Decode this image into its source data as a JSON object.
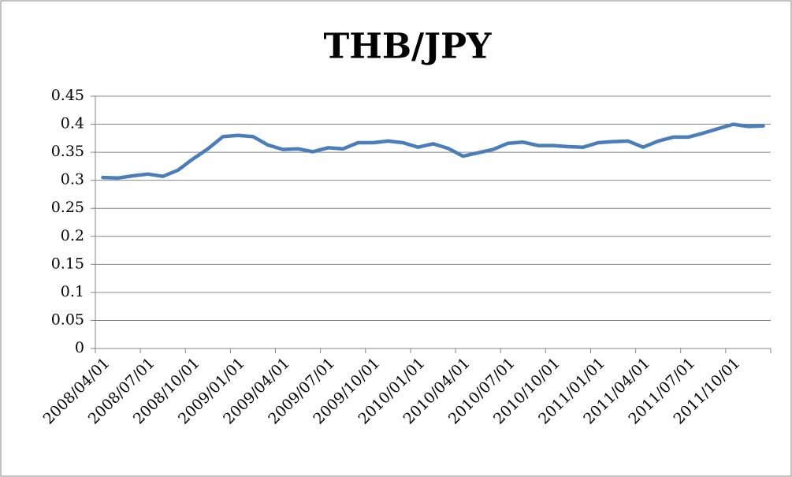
{
  "chart_data": {
    "type": "line",
    "title": "THB/JPY",
    "categories": [
      "2008/04/01",
      null,
      null,
      "2008/07/01",
      null,
      null,
      "2008/10/01",
      null,
      null,
      "2009/01/01",
      null,
      null,
      "2009/04/01",
      null,
      null,
      "2009/07/01",
      null,
      null,
      "2009/10/01",
      null,
      null,
      "2010/01/01",
      null,
      null,
      "2010/04/01",
      null,
      null,
      "2010/07/01",
      null,
      null,
      "2010/10/01",
      null,
      null,
      "2011/01/01",
      null,
      null,
      "2011/04/01",
      null,
      null,
      "2011/07/01",
      null,
      null,
      "2011/10/01",
      null,
      null
    ],
    "series": [
      {
        "name": "THB/JPY",
        "color": "#4a7ebb",
        "values": [
          0.305,
          0.304,
          0.308,
          0.311,
          0.307,
          0.318,
          0.338,
          0.356,
          0.378,
          0.38,
          0.378,
          0.363,
          0.355,
          0.356,
          0.351,
          0.358,
          0.356,
          0.367,
          0.367,
          0.37,
          0.367,
          0.359,
          0.365,
          0.357,
          0.343,
          0.349,
          0.355,
          0.366,
          0.368,
          0.362,
          0.362,
          0.36,
          0.359,
          0.367,
          0.369,
          0.37,
          0.359,
          0.37,
          0.377,
          0.377,
          0.384,
          0.392,
          0.4,
          0.396,
          0.397
        ]
      }
    ],
    "ylim": [
      0,
      0.45
    ],
    "yticks": [
      0,
      0.05,
      0.1,
      0.15,
      0.2,
      0.25,
      0.3,
      0.35,
      0.4,
      0.45
    ],
    "grid": true
  }
}
